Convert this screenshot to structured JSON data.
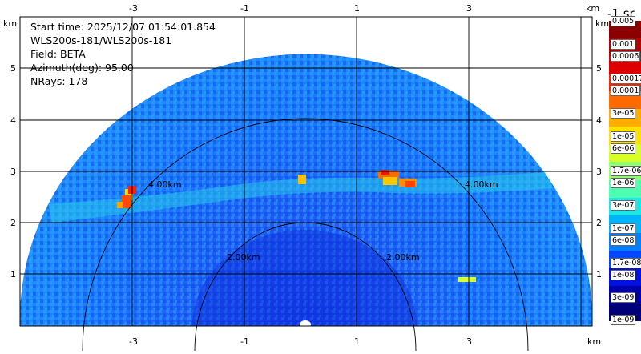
{
  "info": {
    "start_time": "Start time: 2025/12/07 01:54:01.854",
    "instrument": "WLS200s-181/WLS200s-181",
    "field": "Field: BETA",
    "azimuth": "Azimuth(deg): 95.00",
    "nrays": "NRays: 178"
  },
  "axes": {
    "unit_label": "km",
    "x_ticks": [
      "-3",
      "-1",
      "1",
      "3"
    ],
    "y_ticks": [
      "5",
      "4",
      "3",
      "2",
      "1"
    ]
  },
  "rings": {
    "labels": [
      "4.00km",
      "4.00km",
      "2.00km",
      "2.00km"
    ]
  },
  "colorbar": {
    "title": "-1 sr",
    "top_label": "0.005",
    "labels": [
      "0.001",
      "0.0006",
      "0.00017",
      "0.0001",
      "3e-05",
      "1e-05",
      "6e-06",
      "1.7e-06",
      "1e-06",
      "3e-07",
      "1e-07",
      "6e-08",
      "1.7e-08",
      "1e-08",
      "3e-09",
      "1e-09"
    ],
    "colors": [
      "#8b0000",
      "#b40000",
      "#dc0000",
      "#ff2400",
      "#ff6a00",
      "#ffae00",
      "#ffe100",
      "#d6ff29",
      "#8fff6f",
      "#4dffb0",
      "#1ee6e6",
      "#00b4ff",
      "#0080ff",
      "#0046ff",
      "#0010e0",
      "#0000a8",
      "#00007a"
    ]
  }
}
